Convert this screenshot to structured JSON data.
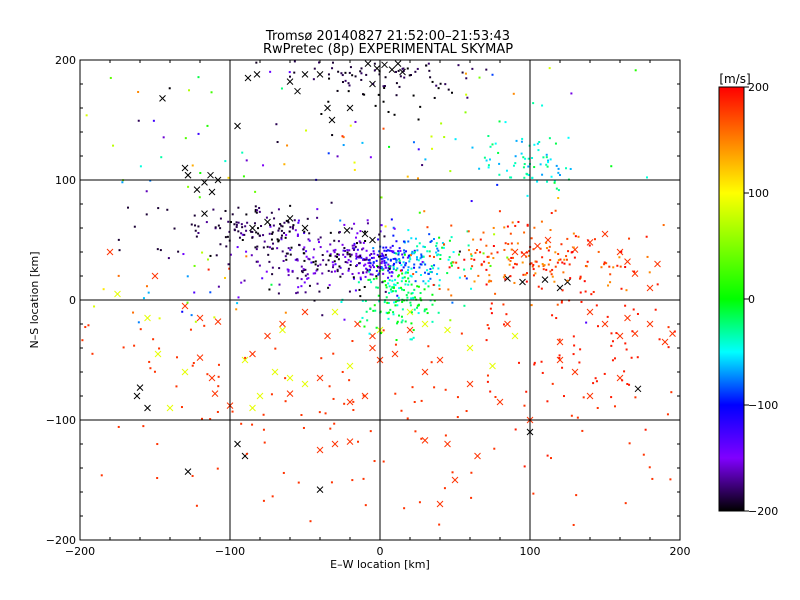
{
  "chart_data": {
    "type": "scatter",
    "title": "Tromsø 20140827 21:52:00–21:53:43",
    "subtitle": "RwPretec (8p) EXPERIMENTAL SKYMAP",
    "xlabel": "E–W location [km]",
    "ylabel": "N–S location [km]",
    "xlim": [
      -200,
      200
    ],
    "ylim": [
      -200,
      200
    ],
    "xticks": [
      -200,
      -100,
      0,
      100,
      200
    ],
    "yticks": [
      -200,
      -100,
      0,
      100,
      200
    ],
    "grid": true,
    "colorbar": {
      "label": "[m/s]",
      "min": -200,
      "max": 200,
      "ticks": [
        200,
        100,
        0,
        -100,
        -200
      ],
      "position": "right"
    },
    "series": [
      {
        "marker": "cross",
        "points": [
          [
            -130,
            110
          ],
          [
            -128,
            104
          ],
          [
            -122,
            92
          ],
          [
            -117,
            98
          ],
          [
            -113,
            104
          ],
          [
            -108,
            100
          ],
          [
            -145,
            168
          ],
          [
            -95,
            145
          ],
          [
            -88,
            185
          ],
          [
            -82,
            188
          ],
          [
            -60,
            182
          ],
          [
            -55,
            174
          ],
          [
            -40,
            188
          ],
          [
            -32,
            150
          ],
          [
            -20,
            160
          ],
          [
            -5,
            180
          ],
          [
            -8,
            197
          ],
          [
            -2,
            193
          ],
          [
            3,
            196
          ],
          [
            8,
            192
          ],
          [
            12,
            197
          ],
          [
            15,
            190
          ],
          [
            -40,
            -158
          ],
          [
            -128,
            -143
          ],
          [
            -95,
            -120
          ],
          [
            -90,
            -130
          ],
          [
            -162,
            -80
          ],
          [
            -155,
            -90
          ],
          [
            -160,
            -73
          ],
          [
            -128,
            104
          ],
          [
            -50,
            188
          ],
          [
            -35,
            160
          ],
          [
            100,
            -110
          ],
          [
            172,
            -74
          ],
          [
            -112,
            90
          ],
          [
            -117,
            72
          ],
          [
            -85,
            60
          ],
          [
            -75,
            65
          ],
          [
            -60,
            68
          ],
          [
            -50,
            60
          ],
          [
            -22,
            58
          ],
          [
            -10,
            55
          ],
          [
            -5,
            50
          ],
          [
            85,
            18
          ],
          [
            95,
            15
          ],
          [
            110,
            17
          ],
          [
            120,
            10
          ],
          [
            125,
            15
          ]
        ]
      },
      {
        "marker": "cross",
        "points": [
          [
            -180,
            40
          ],
          [
            -150,
            20
          ],
          [
            -130,
            -5
          ],
          [
            -120,
            -15
          ],
          [
            -108,
            -18
          ],
          [
            -120,
            -48
          ],
          [
            -110,
            -78
          ],
          [
            -100,
            -88
          ],
          [
            -112,
            -65
          ],
          [
            -60,
            -78
          ],
          [
            -40,
            -65
          ],
          [
            -20,
            -85
          ],
          [
            0,
            -50
          ],
          [
            -30,
            -120
          ],
          [
            -20,
            -118
          ],
          [
            30,
            -117
          ],
          [
            45,
            -120
          ],
          [
            65,
            -130
          ],
          [
            80,
            -85
          ],
          [
            100,
            -100
          ],
          [
            140,
            -10
          ],
          [
            150,
            -20
          ],
          [
            160,
            -30
          ],
          [
            165,
            -15
          ],
          [
            170,
            -28
          ],
          [
            180,
            -20
          ],
          [
            190,
            -35
          ],
          [
            195,
            -28
          ],
          [
            120,
            -50
          ],
          [
            140,
            -80
          ],
          [
            160,
            -65
          ],
          [
            60,
            -70
          ],
          [
            30,
            -60
          ],
          [
            40,
            -50
          ],
          [
            90,
            40
          ],
          [
            96,
            38
          ],
          [
            105,
            45
          ],
          [
            112,
            50
          ],
          [
            130,
            42
          ],
          [
            140,
            48
          ],
          [
            150,
            55
          ],
          [
            160,
            40
          ],
          [
            165,
            32
          ],
          [
            170,
            22
          ],
          [
            180,
            10
          ],
          [
            185,
            30
          ],
          [
            120,
            -35
          ],
          [
            130,
            -60
          ],
          [
            40,
            -170
          ],
          [
            50,
            -150
          ],
          [
            -40,
            -125
          ],
          [
            -10,
            -80
          ],
          [
            -5,
            -30
          ],
          [
            20,
            -25
          ],
          [
            -75,
            -30
          ],
          [
            -85,
            -45
          ],
          [
            -65,
            -20
          ],
          [
            -50,
            -10
          ],
          [
            -35,
            -30
          ],
          [
            -15,
            -20
          ],
          [
            -5,
            -40
          ],
          [
            10,
            -45
          ],
          [
            85,
            -20
          ]
        ]
      },
      {
        "marker": "cross",
        "points": [
          [
            -175,
            5
          ],
          [
            -155,
            -15
          ],
          [
            -148,
            -45
          ],
          [
            -130,
            -60
          ],
          [
            -90,
            -50
          ],
          [
            -70,
            -60
          ],
          [
            -60,
            -65
          ],
          [
            -50,
            -70
          ],
          [
            -140,
            -90
          ],
          [
            -30,
            -10
          ],
          [
            0,
            -25
          ],
          [
            20,
            -10
          ],
          [
            30,
            -20
          ],
          [
            45,
            -25
          ],
          [
            60,
            -40
          ],
          [
            75,
            -55
          ],
          [
            90,
            -30
          ],
          [
            -85,
            -90
          ],
          [
            -80,
            -80
          ],
          [
            -20,
            -55
          ],
          [
            -65,
            -25
          ]
        ]
      }
    ]
  }
}
